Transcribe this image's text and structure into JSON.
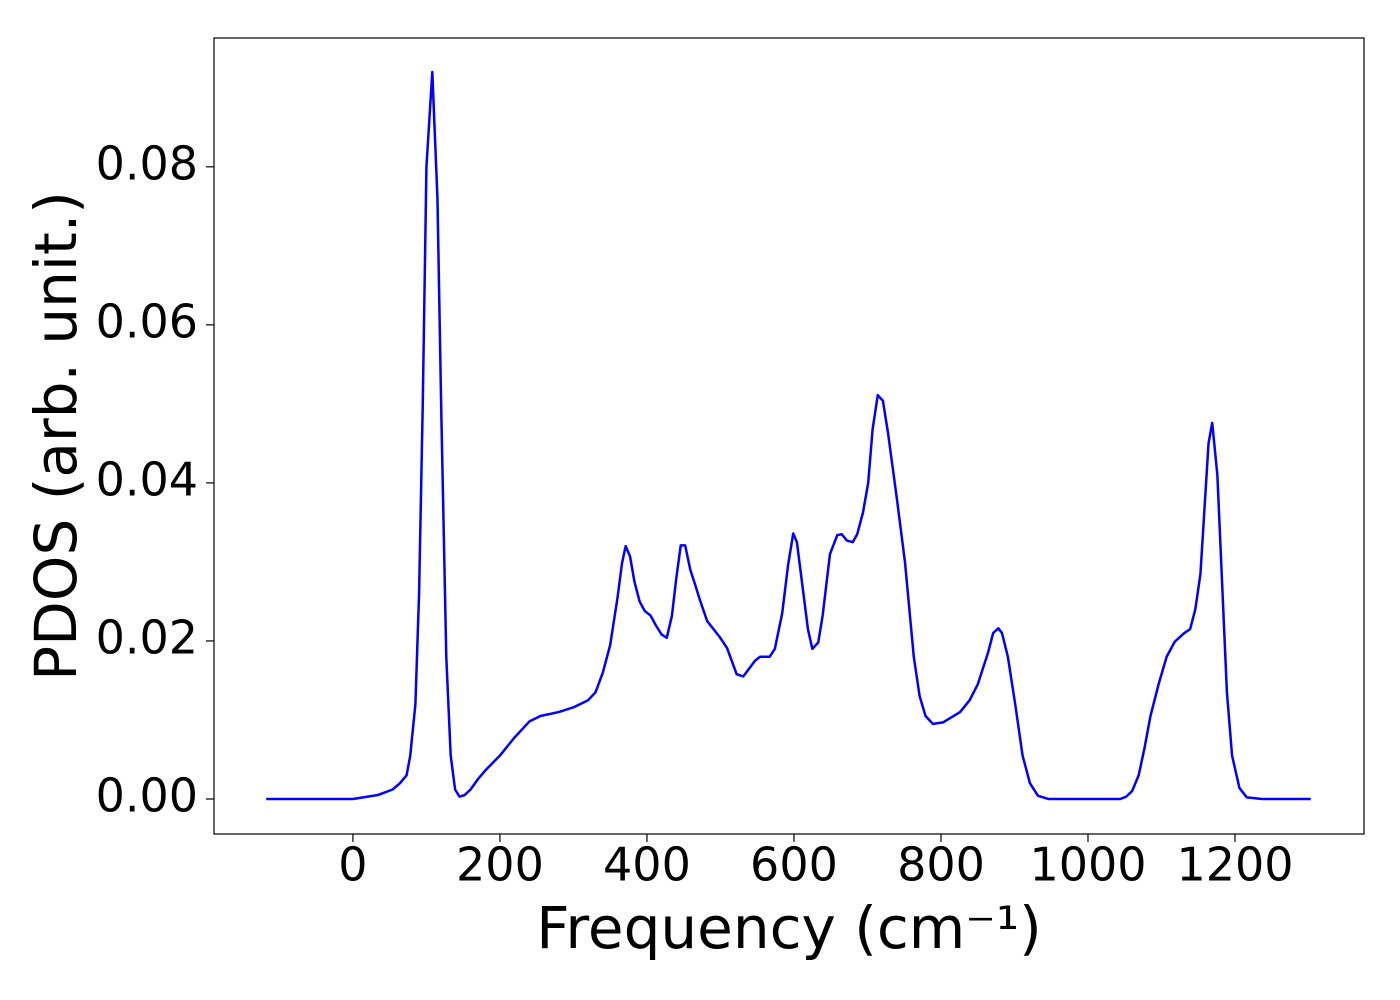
{
  "chart_data": {
    "type": "line",
    "xlabel": "Frequency (cm⁻¹)",
    "ylabel": "PDOS (arb. unit.)",
    "xlim": [
      -189,
      1375.5
    ],
    "ylim": [
      -0.00443,
      0.0963
    ],
    "xticks": [
      0,
      200,
      400,
      600,
      800,
      1000,
      1200
    ],
    "yticks": [
      {
        "value": 0,
        "label": "0.00"
      },
      {
        "value": 0.02,
        "label": "0.02"
      },
      {
        "value": 0.04,
        "label": "0.04"
      },
      {
        "value": 0.06,
        "label": "0.06"
      },
      {
        "value": 0.08,
        "label": "0.08"
      }
    ],
    "series": [
      {
        "color": "#0000ff",
        "x": [
          -118,
          0,
          34,
          54,
          64,
          73,
          78,
          85,
          90,
          95,
          100,
          108,
          115,
          120,
          127,
          133,
          139,
          145,
          152,
          160,
          170,
          180,
          200,
          220,
          240,
          255,
          280,
          300,
          320,
          330,
          340,
          350,
          360,
          366,
          371,
          377,
          383,
          390,
          397,
          405,
          412,
          420,
          427,
          434,
          440,
          446,
          452,
          459,
          466,
          472,
          482,
          499,
          509,
          522,
          531,
          547,
          554,
          567,
          574,
          584,
          592,
          599,
          604,
          619,
          625,
          633,
          639,
          649,
          659,
          665,
          672,
          680,
          686,
          694,
          701,
          707,
          714,
          721,
          728,
          740,
          751,
          763,
          771,
          779,
          789,
          803,
          826,
          839,
          850,
          864,
          871,
          878,
          883,
          891,
          901,
          911,
          921,
          932,
          946,
          1044,
          1052,
          1060,
          1069,
          1077,
          1085,
          1096,
          1107,
          1118,
          1131,
          1139,
          1146,
          1153,
          1164,
          1169,
          1176,
          1189,
          1196,
          1206,
          1216,
          1237,
          1303
        ],
        "values": [
          0,
          0,
          0.0005,
          0.0012,
          0.002,
          0.003,
          0.0055,
          0.012,
          0.026,
          0.05,
          0.08,
          0.092,
          0.076,
          0.05,
          0.018,
          0.0055,
          0.0012,
          0.0003,
          0.0005,
          0.0012,
          0.0025,
          0.0036,
          0.0055,
          0.0078,
          0.0098,
          0.0105,
          0.011,
          0.0116,
          0.0125,
          0.0135,
          0.016,
          0.0195,
          0.0255,
          0.0298,
          0.032,
          0.0307,
          0.0275,
          0.025,
          0.0238,
          0.0232,
          0.022,
          0.0208,
          0.0204,
          0.0232,
          0.028,
          0.0321,
          0.0321,
          0.029,
          0.027,
          0.0252,
          0.0225,
          0.0205,
          0.0191,
          0.0158,
          0.0155,
          0.0175,
          0.018,
          0.018,
          0.019,
          0.0235,
          0.0296,
          0.0336,
          0.0325,
          0.0215,
          0.019,
          0.0198,
          0.0232,
          0.031,
          0.0334,
          0.0335,
          0.0327,
          0.0325,
          0.0335,
          0.0363,
          0.04,
          0.0468,
          0.0511,
          0.0504,
          0.0463,
          0.038,
          0.03,
          0.018,
          0.013,
          0.0105,
          0.0095,
          0.0097,
          0.011,
          0.0125,
          0.0145,
          0.0185,
          0.021,
          0.0216,
          0.021,
          0.018,
          0.012,
          0.0055,
          0.002,
          0.0004,
          0,
          0,
          0.0003,
          0.001,
          0.003,
          0.0065,
          0.0105,
          0.0145,
          0.018,
          0.0199,
          0.021,
          0.0215,
          0.024,
          0.0285,
          0.045,
          0.0476,
          0.041,
          0.0135,
          0.0055,
          0.0014,
          0.0002,
          0,
          0
        ]
      }
    ]
  }
}
